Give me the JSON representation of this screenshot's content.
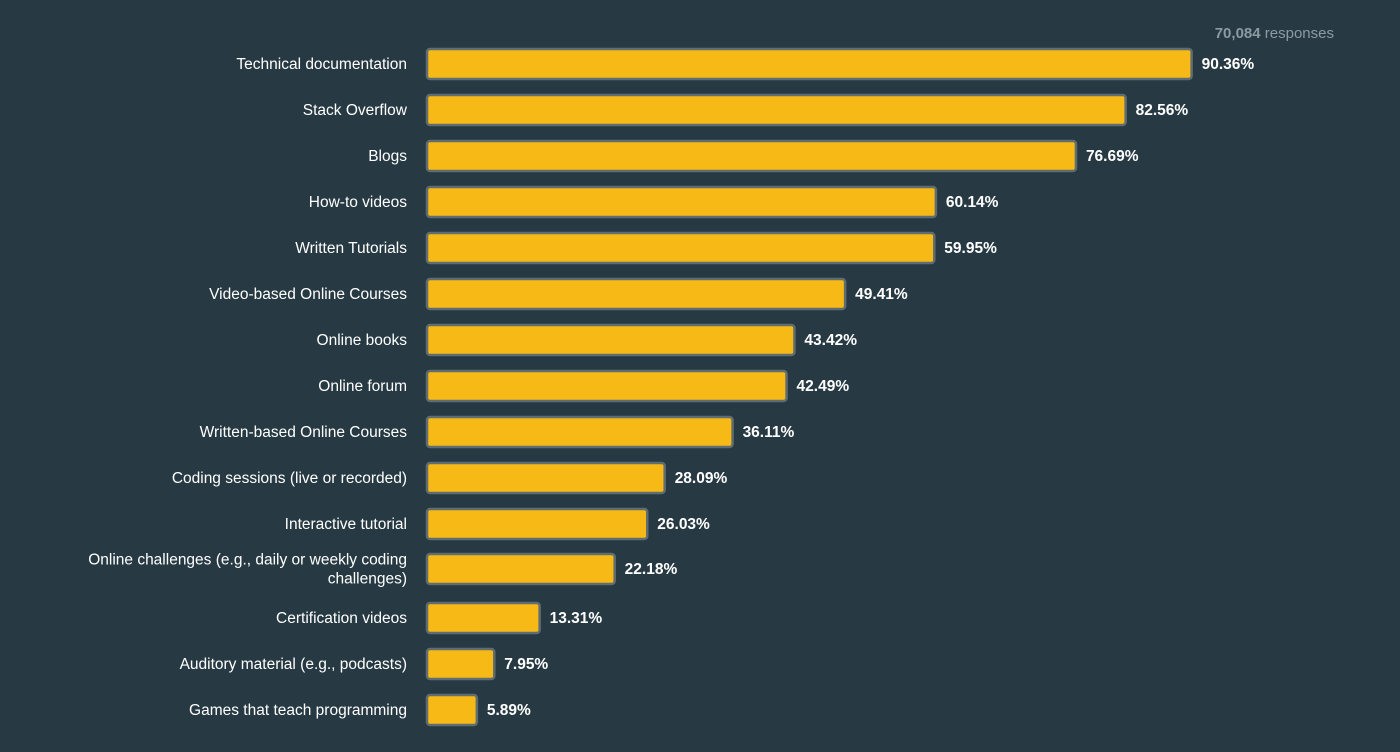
{
  "responses": {
    "count": "70,084",
    "label": "responses"
  },
  "colors": {
    "background": "#273a43",
    "bar_fill": "#f7b916",
    "bar_stroke": "#5f6d70",
    "text": "#ffffff",
    "muted_text": "#8c9aa2"
  },
  "chart_data": {
    "type": "bar",
    "orientation": "horizontal",
    "grid": false,
    "xlim": [
      0,
      100
    ],
    "categories": [
      [
        "Technical documentation"
      ],
      [
        "Stack Overflow"
      ],
      [
        "Blogs"
      ],
      [
        "How-to videos"
      ],
      [
        "Written Tutorials"
      ],
      [
        "Video-based Online Courses"
      ],
      [
        "Online books"
      ],
      [
        "Online forum"
      ],
      [
        "Written-based Online Courses"
      ],
      [
        "Coding sessions (live or recorded)"
      ],
      [
        "Interactive tutorial"
      ],
      [
        "Online challenges (e.g., daily or weekly coding",
        "challenges)"
      ],
      [
        "Certification videos"
      ],
      [
        "Auditory material (e.g., podcasts)"
      ],
      [
        "Games that teach programming"
      ]
    ],
    "values": [
      90.36,
      82.56,
      76.69,
      60.14,
      59.95,
      49.41,
      43.42,
      42.49,
      36.11,
      28.09,
      26.03,
      22.18,
      13.31,
      7.95,
      5.89
    ],
    "value_labels": [
      "90.36%",
      "82.56%",
      "76.69%",
      "60.14%",
      "59.95%",
      "49.41%",
      "43.42%",
      "42.49%",
      "36.11%",
      "28.09%",
      "26.03%",
      "22.18%",
      "13.31%",
      "7.95%",
      "5.89%"
    ]
  }
}
